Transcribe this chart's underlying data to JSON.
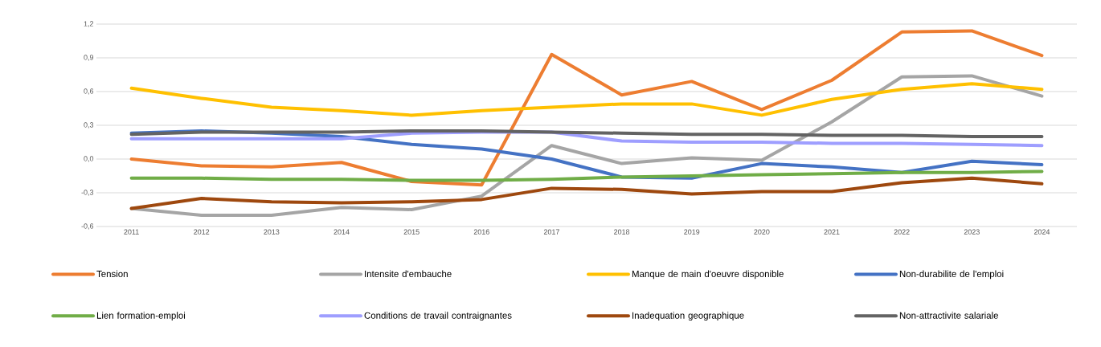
{
  "chart_data": {
    "type": "line",
    "categories": [
      "2011",
      "2012",
      "2013",
      "2014",
      "2015",
      "2016",
      "2017",
      "2018",
      "2019",
      "2020",
      "2021",
      "2022",
      "2023",
      "2024"
    ],
    "series": [
      {
        "name": "Tension",
        "color": "#ed7d31",
        "values": [
          0.0,
          -0.06,
          -0.07,
          -0.03,
          -0.2,
          -0.23,
          0.93,
          0.57,
          0.69,
          0.44,
          0.7,
          1.13,
          1.14,
          0.92
        ]
      },
      {
        "name": "Intensite d'embauche",
        "color": "#a5a5a5",
        "values": [
          -0.44,
          -0.5,
          -0.5,
          -0.43,
          -0.45,
          -0.33,
          0.12,
          -0.04,
          0.01,
          -0.01,
          0.33,
          0.73,
          0.74,
          0.56
        ]
      },
      {
        "name": "Manque de main d'oeuvre disponible",
        "color": "#ffc000",
        "values": [
          0.63,
          0.54,
          0.46,
          0.43,
          0.39,
          0.43,
          0.46,
          0.49,
          0.49,
          0.39,
          0.53,
          0.62,
          0.67,
          0.62
        ]
      },
      {
        "name": "Non-durabilite de l'emploi",
        "color": "#4472c4",
        "values": [
          0.23,
          0.25,
          0.23,
          0.2,
          0.13,
          0.09,
          0.0,
          -0.16,
          -0.17,
          -0.04,
          -0.07,
          -0.12,
          -0.02,
          -0.05
        ]
      },
      {
        "name": "Lien formation-emploi",
        "color": "#70ad47",
        "values": [
          -0.17,
          -0.17,
          -0.18,
          -0.18,
          -0.19,
          -0.19,
          -0.18,
          -0.16,
          -0.15,
          -0.14,
          -0.13,
          -0.12,
          -0.12,
          -0.11
        ]
      },
      {
        "name": "Conditions de travail contraignantes",
        "color": "#9e9eff",
        "values": [
          0.18,
          0.18,
          0.18,
          0.18,
          0.23,
          0.24,
          0.24,
          0.16,
          0.15,
          0.15,
          0.14,
          0.14,
          0.13,
          0.12
        ]
      },
      {
        "name": "Inadequation geographique",
        "color": "#9e480e",
        "values": [
          -0.44,
          -0.35,
          -0.38,
          -0.39,
          -0.38,
          -0.36,
          -0.26,
          -0.27,
          -0.31,
          -0.29,
          -0.29,
          -0.21,
          -0.17,
          -0.22
        ]
      },
      {
        "name": "Non-attractivite salariale",
        "color": "#636363",
        "values": [
          0.22,
          0.24,
          0.24,
          0.24,
          0.25,
          0.25,
          0.24,
          0.23,
          0.22,
          0.22,
          0.21,
          0.21,
          0.2,
          0.2
        ]
      }
    ],
    "ylim": [
      -0.6,
      1.2
    ],
    "yticks": [
      {
        "value": -0.6,
        "label": "-0,6"
      },
      {
        "value": -0.3,
        "label": "-0,3"
      },
      {
        "value": 0.0,
        "label": "0,0"
      },
      {
        "value": 0.3,
        "label": "0,3"
      },
      {
        "value": 0.6,
        "label": "0,6"
      },
      {
        "value": 0.9,
        "label": "0,9"
      },
      {
        "value": 1.2,
        "label": "1,2"
      }
    ],
    "grid": "y",
    "legend": "bottom",
    "marker": "none",
    "line_style": "solid"
  }
}
